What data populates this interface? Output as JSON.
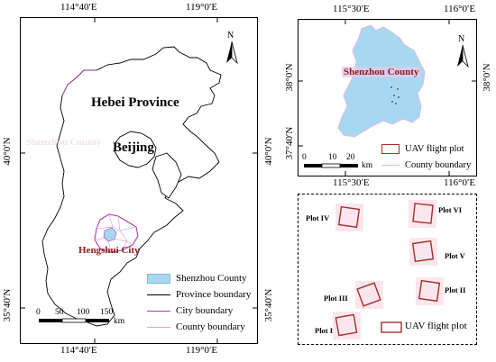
{
  "main_map": {
    "top_ticks": [
      "114°40′E",
      "119°0′E"
    ],
    "bottom_ticks": [
      "114°40′E",
      "119°0′E"
    ],
    "left_ticks": [
      "40°0′N",
      "35°40′N"
    ],
    "right_ticks": [
      "40°0′N",
      "35°40′N"
    ],
    "north_label": "N",
    "labels": {
      "hebei": "Hebei Province",
      "beijing": "Beijing",
      "hengshui": "Hengshui City",
      "ghost": "Shenzhou County"
    },
    "scale": {
      "ticks": [
        "0",
        "50",
        "100",
        "150"
      ],
      "unit": "km"
    },
    "legend": [
      {
        "label": "Shenzhou County",
        "color": "#a7d8f2"
      },
      {
        "label": "Province boundary",
        "color": "#000000"
      },
      {
        "label": "City boundary",
        "color": "#b03cb0"
      },
      {
        "label": "County boundary",
        "color": "#d8a8d8"
      }
    ]
  },
  "inset_map": {
    "top_ticks": [
      "115°30′E",
      "116°0′E"
    ],
    "bottom_ticks": [
      "115°30′E",
      "116°0′E"
    ],
    "left_ticks": [
      "38°0′N",
      "37°40′N"
    ],
    "right_ticks": [
      "38°0′N"
    ],
    "north_label": "N",
    "county_label": "Shenzhou County",
    "scale": {
      "ticks": [
        "0",
        "10",
        "20"
      ],
      "unit": "km"
    },
    "legend": [
      {
        "label": "UAV flight plot",
        "color": "#a0322a"
      },
      {
        "label": "County boundary",
        "color": "#e0b8e0"
      }
    ]
  },
  "plots_panel": {
    "plots": [
      "Plot IV",
      "Plot VI",
      "Plot V",
      "Plot III",
      "Plot II",
      "Plot I"
    ],
    "legend_label": "UAV flight plot"
  },
  "colors": {
    "shenzhou_fill": "#a7d8f2",
    "plot_outline": "#a0322a",
    "city_boundary": "#b03cb0",
    "county_boundary": "#d8a8d8"
  }
}
